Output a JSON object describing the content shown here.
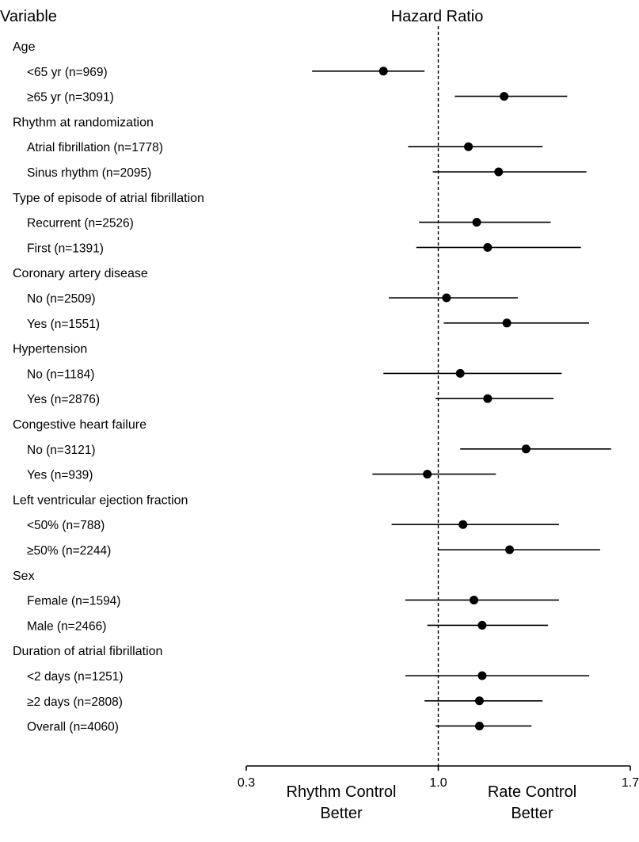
{
  "chart_data": {
    "type": "forest",
    "column_header_left": "Variable",
    "column_header_right": "Hazard Ratio",
    "xaxis": {
      "range": [
        0.3,
        1.7
      ],
      "reference": 1.0,
      "ticks": [
        "0.3",
        "1.0",
        "1.7"
      ]
    },
    "left_label_line1": "Rhythm Control",
    "left_label_line2": "Better",
    "right_label_line1": "Rate Control",
    "right_label_line2": "Better",
    "rows": [
      {
        "kind": "group",
        "label": "Age"
      },
      {
        "kind": "item",
        "label": "<65 yr (n=969)",
        "hr": 0.8,
        "lo": 0.54,
        "hi": 0.95
      },
      {
        "kind": "item",
        "label": "≥65 yr (n=3091)",
        "hr": 1.24,
        "lo": 1.06,
        "hi": 1.47
      },
      {
        "kind": "group",
        "label": "Rhythm at randomization"
      },
      {
        "kind": "item",
        "label": "Atrial fibrillation (n=1778)",
        "hr": 1.11,
        "lo": 0.89,
        "hi": 1.38
      },
      {
        "kind": "item",
        "label": "Sinus rhythm (n=2095)",
        "hr": 1.22,
        "lo": 0.98,
        "hi": 1.54
      },
      {
        "kind": "group",
        "label": "Type of episode of atrial fibrillation"
      },
      {
        "kind": "item",
        "label": "Recurrent (n=2526)",
        "hr": 1.14,
        "lo": 0.93,
        "hi": 1.41
      },
      {
        "kind": "item",
        "label": "First (n=1391)",
        "hr": 1.18,
        "lo": 0.92,
        "hi": 1.52
      },
      {
        "kind": "group",
        "label": "Coronary artery disease"
      },
      {
        "kind": "item",
        "label": "No (n=2509)",
        "hr": 1.03,
        "lo": 0.82,
        "hi": 1.29
      },
      {
        "kind": "item",
        "label": "Yes (n=1551)",
        "hr": 1.25,
        "lo": 1.02,
        "hi": 1.55
      },
      {
        "kind": "group",
        "label": "Hypertension"
      },
      {
        "kind": "item",
        "label": "No (n=1184)",
        "hr": 1.08,
        "lo": 0.8,
        "hi": 1.45
      },
      {
        "kind": "item",
        "label": "Yes (n=2876)",
        "hr": 1.18,
        "lo": 0.99,
        "hi": 1.42
      },
      {
        "kind": "group",
        "label": "Congestive heart failure"
      },
      {
        "kind": "item",
        "label": "No (n=3121)",
        "hr": 1.32,
        "lo": 1.08,
        "hi": 1.63
      },
      {
        "kind": "item",
        "label": "Yes (n=939)",
        "hr": 0.96,
        "lo": 0.76,
        "hi": 1.21
      },
      {
        "kind": "group",
        "label": "Left ventricular ejection fraction"
      },
      {
        "kind": "item",
        "label": "<50% (n=788)",
        "hr": 1.09,
        "lo": 0.83,
        "hi": 1.44
      },
      {
        "kind": "item",
        "label": "≥50% (n=2244)",
        "hr": 1.26,
        "lo": 1.0,
        "hi": 1.59
      },
      {
        "kind": "group",
        "label": "Sex"
      },
      {
        "kind": "item",
        "label": "Female (n=1594)",
        "hr": 1.13,
        "lo": 0.88,
        "hi": 1.44
      },
      {
        "kind": "item",
        "label": "Male (n=2466)",
        "hr": 1.16,
        "lo": 0.96,
        "hi": 1.4
      },
      {
        "kind": "group",
        "label": "Duration of atrial fibrillation"
      },
      {
        "kind": "item",
        "label": "<2 days (n=1251)",
        "hr": 1.16,
        "lo": 0.88,
        "hi": 1.55
      },
      {
        "kind": "item",
        "label": "≥2 days (n=2808)",
        "hr": 1.15,
        "lo": 0.95,
        "hi": 1.38
      },
      {
        "kind": "item",
        "label": "Overall (n=4060)",
        "hr": 1.15,
        "lo": 0.99,
        "hi": 1.34
      }
    ]
  }
}
